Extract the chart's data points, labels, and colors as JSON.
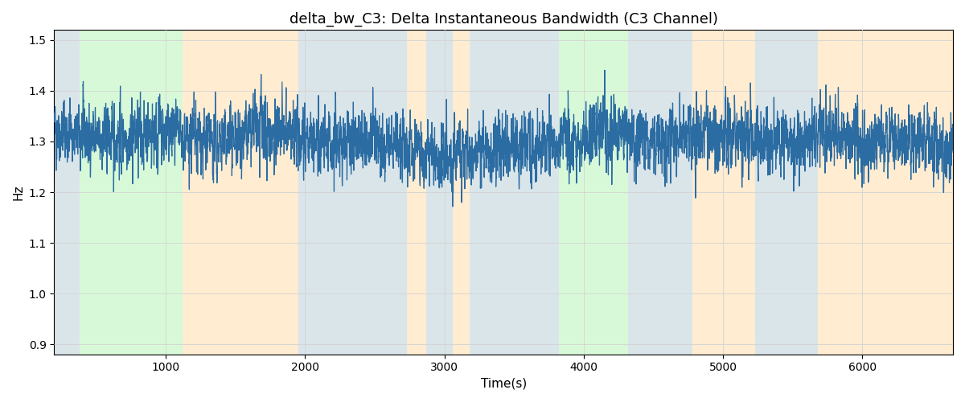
{
  "title": "delta_bw_C3: Delta Instantaneous Bandwidth (C3 Channel)",
  "xlabel": "Time(s)",
  "ylabel": "Hz",
  "ylim": [
    0.88,
    1.52
  ],
  "xlim": [
    200,
    6650
  ],
  "yticks": [
    0.9,
    1.0,
    1.1,
    1.2,
    1.3,
    1.4,
    1.5
  ],
  "xticks": [
    1000,
    2000,
    3000,
    4000,
    5000,
    6000
  ],
  "line_color": "#2B6CA3",
  "line_width": 0.9,
  "bg_bands": [
    {
      "xmin": 200,
      "xmax": 380,
      "color": "#AEC6CF",
      "alpha": 0.45
    },
    {
      "xmin": 380,
      "xmax": 1120,
      "color": "#90EE90",
      "alpha": 0.35
    },
    {
      "xmin": 1120,
      "xmax": 1950,
      "color": "#FFD59A",
      "alpha": 0.45
    },
    {
      "xmin": 1950,
      "xmax": 2730,
      "color": "#AEC6CF",
      "alpha": 0.45
    },
    {
      "xmin": 2730,
      "xmax": 2870,
      "color": "#FFD59A",
      "alpha": 0.45
    },
    {
      "xmin": 2870,
      "xmax": 3060,
      "color": "#AEC6CF",
      "alpha": 0.45
    },
    {
      "xmin": 3060,
      "xmax": 3180,
      "color": "#FFD59A",
      "alpha": 0.45
    },
    {
      "xmin": 3180,
      "xmax": 3820,
      "color": "#AEC6CF",
      "alpha": 0.45
    },
    {
      "xmin": 3820,
      "xmax": 4320,
      "color": "#90EE90",
      "alpha": 0.35
    },
    {
      "xmin": 4320,
      "xmax": 4780,
      "color": "#AEC6CF",
      "alpha": 0.45
    },
    {
      "xmin": 4780,
      "xmax": 5230,
      "color": "#FFD59A",
      "alpha": 0.45
    },
    {
      "xmin": 5230,
      "xmax": 5680,
      "color": "#AEC6CF",
      "alpha": 0.45
    },
    {
      "xmin": 5680,
      "xmax": 6650,
      "color": "#FFD59A",
      "alpha": 0.45
    }
  ],
  "seed": 42,
  "signal_mean": 1.3,
  "signal_std": 0.055,
  "smooth_window": 3
}
